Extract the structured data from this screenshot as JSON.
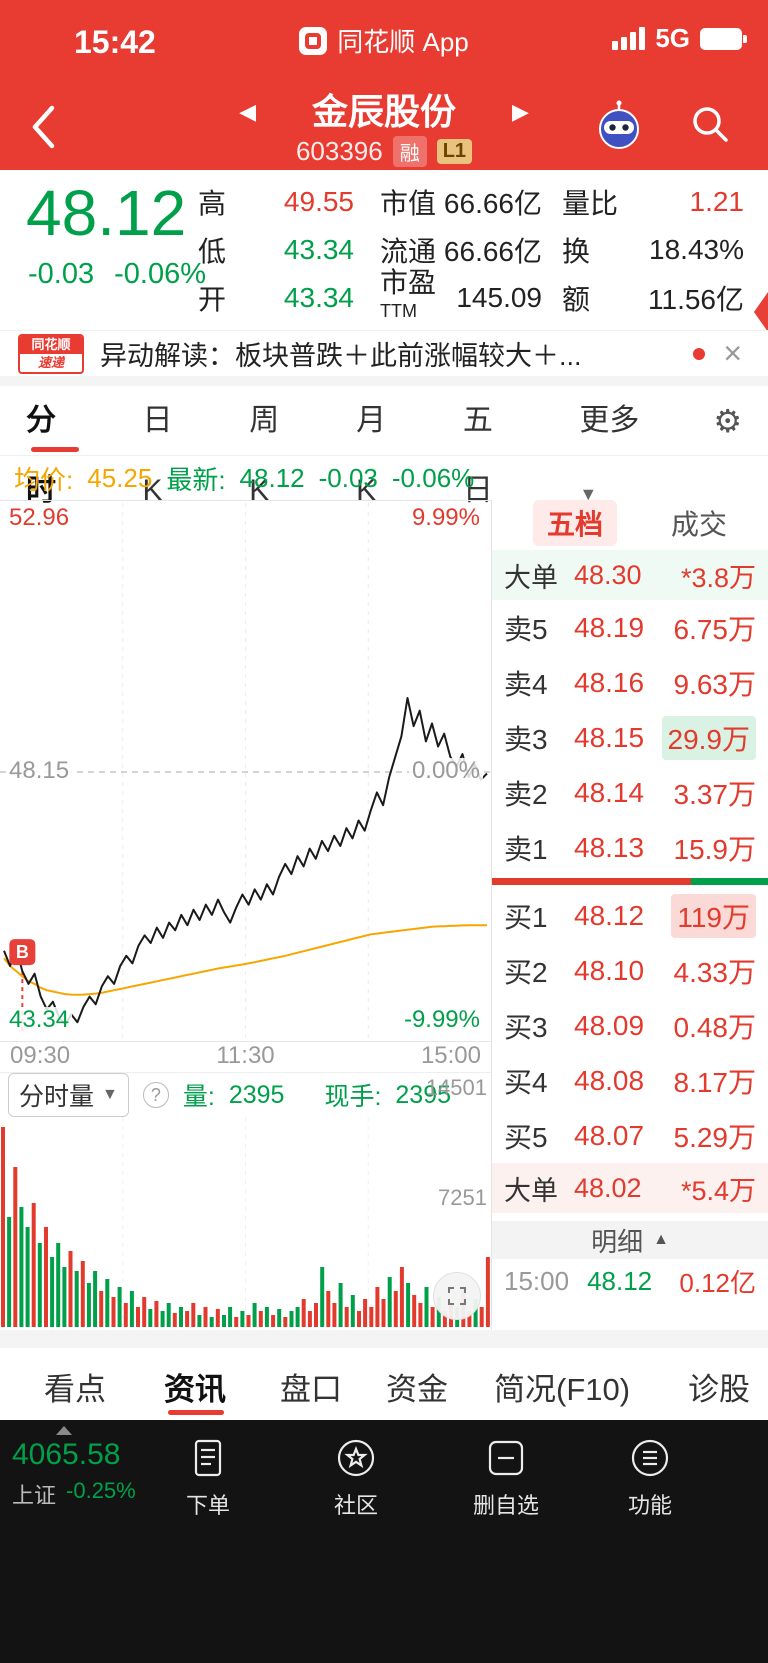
{
  "colors": {
    "brand_red": "#e83b32",
    "up": "#e23b2e",
    "down": "#00a04a",
    "avg_orange": "#f7a600"
  },
  "icons": {
    "caret_down": "▼",
    "caret_up": "▲",
    "close": "×",
    "gear": "⚙",
    "tri_left": "◀",
    "tri_right": "▶",
    "question": "?"
  },
  "status_bar": {
    "time": "15:42",
    "app_name": "同花顺 App",
    "network": "5G"
  },
  "header": {
    "title": "金辰股份",
    "code": "603396",
    "badge_rong": "融",
    "badge_l1": "L1"
  },
  "quote": {
    "price": "48.12",
    "change": "-0.03",
    "change_pct": "-0.06%",
    "high_label": "高",
    "high": "49.55",
    "low_label": "低",
    "low": "43.34",
    "open_label": "开",
    "open": "43.34",
    "mktcap_label": "市值",
    "mktcap": "66.66亿",
    "float_label": "流通",
    "float": "66.66亿",
    "pe_label": "市盈",
    "pe_sup": "TTM",
    "pe": "145.09",
    "volratio_label": "量比",
    "volratio": "1.21",
    "turnover_label": "换",
    "turnover": "18.43%",
    "amount_label": "额",
    "amount": "11.56亿"
  },
  "news": {
    "logo_line1": "同花顺",
    "logo_line2": "速递",
    "text": "异动解读：板块普跌＋此前涨幅较大＋..."
  },
  "tabs": {
    "items": [
      "分时",
      "日K",
      "周K",
      "月K",
      "五日",
      "更多"
    ],
    "active": "分时"
  },
  "chart_header": {
    "avg_label": "均价:",
    "avg": "45.25",
    "latest_label": "最新:",
    "latest": "48.12",
    "chg": "-0.03",
    "chg_pct": "-0.06%"
  },
  "chart_data": {
    "type": "line",
    "y_top": "52.96",
    "y_mid": "48.15",
    "y_bottom": "43.34",
    "pct_top": "9.99%",
    "pct_mid": "0.00%",
    "pct_bottom": "-9.99%",
    "x_labels": [
      "09:30",
      "11:30",
      "15:00"
    ],
    "pct_range": 9.99,
    "marker": {
      "label": "B",
      "index": 3
    },
    "price_pct": [
      -7.0,
      -7.6,
      -6.9,
      -7.8,
      -8.3,
      -7.9,
      -8.8,
      -9.3,
      -9.0,
      -9.6,
      -9.9,
      -9.5,
      -9.8,
      -9.2,
      -8.8,
      -9.1,
      -8.4,
      -8.0,
      -8.3,
      -7.6,
      -7.2,
      -7.5,
      -6.8,
      -6.4,
      -6.7,
      -6.1,
      -6.5,
      -5.9,
      -6.2,
      -5.6,
      -6.0,
      -5.4,
      -5.8,
      -5.2,
      -5.6,
      -5.0,
      -5.5,
      -5.9,
      -5.3,
      -4.8,
      -5.2,
      -4.6,
      -5.0,
      -4.4,
      -4.8,
      -4.1,
      -3.6,
      -4.0,
      -3.3,
      -3.7,
      -3.0,
      -3.4,
      -2.7,
      -3.1,
      -2.5,
      -2.9,
      -2.2,
      -2.6,
      -1.9,
      -2.3,
      -1.5,
      -0.8,
      -1.3,
      -0.2,
      0.6,
      1.4,
      2.9,
      1.8,
      2.4,
      1.2,
      1.9,
      1.0,
      1.5,
      0.6,
      0.2,
      0.7,
      -0.2,
      0.3,
      -0.3,
      -0.06
    ],
    "avg_pct": [
      -7.3,
      -7.6,
      -7.8,
      -8.0,
      -8.2,
      -8.3,
      -8.45,
      -8.55,
      -8.6,
      -8.65,
      -8.7,
      -8.72,
      -8.73,
      -8.72,
      -8.7,
      -8.68,
      -8.65,
      -8.6,
      -8.55,
      -8.5,
      -8.45,
      -8.4,
      -8.35,
      -8.3,
      -8.25,
      -8.2,
      -8.15,
      -8.1,
      -8.05,
      -8.0,
      -7.95,
      -7.9,
      -7.85,
      -7.8,
      -7.75,
      -7.7,
      -7.66,
      -7.62,
      -7.58,
      -7.54,
      -7.5,
      -7.45,
      -7.4,
      -7.35,
      -7.3,
      -7.25,
      -7.2,
      -7.14,
      -7.08,
      -7.02,
      -6.96,
      -6.9,
      -6.84,
      -6.78,
      -6.72,
      -6.66,
      -6.6,
      -6.54,
      -6.48,
      -6.42,
      -6.36,
      -6.33,
      -6.3,
      -6.27,
      -6.24,
      -6.21,
      -6.18,
      -6.15,
      -6.12,
      -6.09,
      -6.06,
      -6.05,
      -6.04,
      -6.03,
      -6.02,
      -6.01,
      -6.0,
      -6.0,
      -6.0,
      -6.0
    ],
    "volume_axis": {
      "top": "14501",
      "mid": "7251"
    },
    "volume": {
      "heights": [
        1.0,
        0.55,
        0.8,
        0.6,
        0.5,
        0.62,
        0.42,
        0.5,
        0.35,
        0.42,
        0.3,
        0.38,
        0.28,
        0.33,
        0.22,
        0.28,
        0.18,
        0.24,
        0.15,
        0.2,
        0.12,
        0.18,
        0.1,
        0.15,
        0.09,
        0.13,
        0.08,
        0.12,
        0.07,
        0.1,
        0.08,
        0.12,
        0.06,
        0.1,
        0.05,
        0.09,
        0.06,
        0.1,
        0.05,
        0.08,
        0.06,
        0.12,
        0.08,
        0.1,
        0.06,
        0.09,
        0.05,
        0.08,
        0.1,
        0.14,
        0.08,
        0.12,
        0.3,
        0.18,
        0.12,
        0.22,
        0.1,
        0.16,
        0.08,
        0.14,
        0.1,
        0.2,
        0.14,
        0.25,
        0.18,
        0.3,
        0.22,
        0.16,
        0.12,
        0.2,
        0.1,
        0.15,
        0.08,
        0.12,
        0.1,
        0.18,
        0.08,
        0.14,
        0.1,
        0.35
      ],
      "colors": "rgrggrgrgggrgrggrgrgrgrrgrggrgrrgrgrggrgrgrgrgrggrrrgrrgrgrrrrrgrrgrrgrgrrgrrgrr"
    }
  },
  "vol_header": {
    "selector": "分时量",
    "vol_label": "量:",
    "vol": "2395",
    "hand_label": "现手:",
    "hand": "2395"
  },
  "panel": {
    "tab_five": "五档",
    "tab_deals": "成交",
    "big_sell": {
      "label": "大单",
      "price": "48.30",
      "vol": "*3.8万"
    },
    "asks": [
      {
        "label": "卖5",
        "price": "48.19",
        "vol": "6.75万"
      },
      {
        "label": "卖4",
        "price": "48.16",
        "vol": "9.63万"
      },
      {
        "label": "卖3",
        "price": "48.15",
        "vol": "29.9万"
      },
      {
        "label": "卖2",
        "price": "48.14",
        "vol": "3.37万"
      },
      {
        "label": "卖1",
        "price": "48.13",
        "vol": "15.9万"
      }
    ],
    "bids": [
      {
        "label": "买1",
        "price": "48.12",
        "vol": "119万"
      },
      {
        "label": "买2",
        "price": "48.10",
        "vol": "4.33万"
      },
      {
        "label": "买3",
        "price": "48.09",
        "vol": "0.48万"
      },
      {
        "label": "买4",
        "price": "48.08",
        "vol": "8.17万"
      },
      {
        "label": "买5",
        "price": "48.07",
        "vol": "5.29万"
      }
    ],
    "big_buy": {
      "label": "大单",
      "price": "48.02",
      "vol": "*5.4万"
    },
    "ratio": {
      "red": 72,
      "green": 28
    },
    "detail_label": "明细",
    "last_trade": {
      "time": "15:00",
      "price": "48.12",
      "amount": "0.12亿"
    }
  },
  "bottom_tabs": {
    "items": [
      "看点",
      "资讯",
      "盘口",
      "资金",
      "简况(F10)",
      "诊股"
    ],
    "active": "资讯"
  },
  "bottom_nav": {
    "index": {
      "value": "4065.58",
      "name": "上证",
      "pct": "-0.25%"
    },
    "items": [
      {
        "label": "下单"
      },
      {
        "label": "社区"
      },
      {
        "label": "删自选"
      },
      {
        "label": "功能"
      }
    ]
  }
}
